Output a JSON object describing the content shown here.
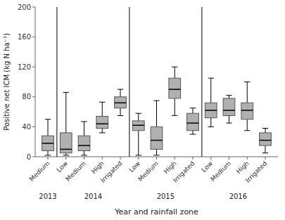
{
  "chart_data": {
    "type": "box",
    "ylabel": "Positive net ICM (kg N ha⁻¹)",
    "xlabel": "Year and rainfall zone",
    "ylim": [
      0,
      200
    ],
    "yticks": [
      0,
      40,
      80,
      120,
      160,
      200
    ],
    "color": "#b0b0b0",
    "categories": [
      "Medium",
      "Low",
      "Medium",
      "High",
      "Irrigated",
      "Low",
      "Medium",
      "High",
      "Irrigated",
      "Low",
      "Medium",
      "High",
      "Irrigated"
    ],
    "groups": [
      "2013",
      "2014",
      "2014",
      "2014",
      "2014",
      "2015",
      "2015",
      "2015",
      "2015",
      "2016",
      "2016",
      "2016",
      "2016"
    ],
    "values": [
      {
        "low": 2,
        "q1": 8,
        "median": 18,
        "q3": 28,
        "high": 50
      },
      {
        "low": 2,
        "q1": 5,
        "median": 10,
        "q3": 32,
        "high": 86
      },
      {
        "low": 2,
        "q1": 8,
        "median": 15,
        "q3": 28,
        "high": 47
      },
      {
        "low": 32,
        "q1": 38,
        "median": 44,
        "q3": 54,
        "high": 73
      },
      {
        "low": 55,
        "q1": 65,
        "median": 72,
        "q3": 80,
        "high": 90
      },
      {
        "low": 2,
        "q1": 35,
        "median": 42,
        "q3": 48,
        "high": 58
      },
      {
        "low": 2,
        "q1": 10,
        "median": 22,
        "q3": 40,
        "high": 75
      },
      {
        "low": 55,
        "q1": 78,
        "median": 90,
        "q3": 105,
        "high": 120
      },
      {
        "low": 30,
        "q1": 35,
        "median": 45,
        "q3": 58,
        "high": 65
      },
      {
        "low": 40,
        "q1": 52,
        "median": 62,
        "q3": 72,
        "high": 105
      },
      {
        "low": 45,
        "q1": 55,
        "median": 62,
        "q3": 78,
        "high": 82
      },
      {
        "low": 35,
        "q1": 50,
        "median": 62,
        "q3": 72,
        "high": 100
      },
      {
        "low": 5,
        "q1": 15,
        "median": 22,
        "q3": 32,
        "high": 38
      }
    ]
  }
}
